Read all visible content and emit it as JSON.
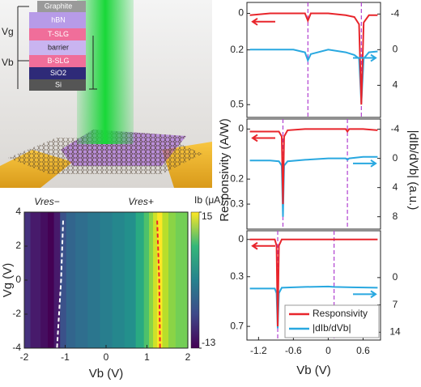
{
  "schematic": {
    "layers": [
      "Graphite",
      "hBN",
      "T-SLG",
      "barrier",
      "B-SLG",
      "SiO2",
      "Si"
    ],
    "voltages": [
      "Vg",
      "Vb"
    ]
  },
  "chart_data": [
    {
      "type": "heatmap",
      "x_label": "Vb (V)",
      "y_label": "Vg (V)",
      "xlim": [
        -2,
        2
      ],
      "xticks": [
        -2,
        -1,
        0,
        1,
        2
      ],
      "ylim": [
        -4,
        4
      ],
      "yticks": [
        -4,
        -2,
        0,
        2,
        4
      ],
      "x": [
        -2,
        -1.7,
        -1.5,
        -1.35,
        -1.2,
        -1.05,
        -0.9,
        -0.6,
        -0.3,
        0,
        0.3,
        0.6,
        0.85,
        1.0,
        1.1,
        1.2,
        1.3,
        1.45,
        1.6,
        1.8,
        2
      ],
      "values": [
        -9,
        -11,
        -12,
        -13,
        -11,
        -6,
        -4,
        -3,
        -2,
        -1,
        0,
        1,
        4,
        7,
        10,
        13,
        15,
        12,
        10,
        9,
        9
      ],
      "colorbar": {
        "label": "Ib (μA)",
        "lim": [
          -13,
          15
        ],
        "ticks": [
          15,
          -13
        ]
      },
      "lines": [
        {
          "name": "Vres−",
          "color": "#ffffff",
          "x": [
            -1.05,
            -1.1,
            -1.2
          ],
          "y": [
            3.5,
            0,
            -4
          ]
        },
        {
          "name": "Vres+",
          "color": "#e8252b",
          "x": [
            1.25,
            1.3,
            1.32
          ],
          "y": [
            3.5,
            0,
            -4
          ]
        }
      ]
    },
    {
      "type": "line",
      "x_label": "Vb (V)",
      "y_label": "Responsivity (A/W)",
      "y2_label": "|dIb/dVb| (a.u.)",
      "xlim": [
        -1.4,
        0.9
      ],
      "xticks": [
        -1.2,
        -0.6,
        0,
        0.6
      ],
      "series": [
        {
          "name": "Responsivity",
          "color": "#e8252b"
        },
        {
          "name": "|dIb/dVb|",
          "color": "#29a8e0",
          "axis": "y2"
        }
      ],
      "panels": [
        {
          "ylim": [
            -0.06,
            0.57
          ],
          "yticks": [
            0.0,
            0.2,
            0.5
          ],
          "y2lim": [
            -5.3,
            7.6
          ],
          "y2ticks": [
            -4,
            0,
            4
          ],
          "markers": [
            -0.35,
            0.57
          ],
          "x": [
            -1.35,
            -1.0,
            -0.6,
            -0.4,
            -0.35,
            -0.3,
            0,
            0.3,
            0.45,
            0.53,
            0.57,
            0.61,
            0.7,
            0.85
          ],
          "values": [
            [
              0.01,
              0.0,
              0.0,
              0.0,
              0.04,
              0.0,
              0.0,
              0.01,
              0.02,
              0.06,
              0.5,
              0.05,
              0.01,
              0.01
            ],
            [
              0,
              0,
              0,
              0.3,
              1.2,
              0.5,
              0,
              0.3,
              0.6,
              1,
              6,
              1,
              0.3,
              0.2
            ]
          ]
        },
        {
          "ylim": [
            -0.04,
            0.4
          ],
          "yticks": [
            0.0,
            0.2,
            0.3
          ],
          "y2lim": [
            -5.4,
            9.7
          ],
          "y2ticks": [
            -4,
            0,
            4,
            8
          ],
          "markers": [
            -0.78,
            0.33
          ],
          "x": [
            -1.35,
            -1.0,
            -0.85,
            -0.8,
            -0.78,
            -0.76,
            -0.7,
            -0.4,
            0,
            0.3,
            0.33,
            0.36,
            0.6,
            0.85
          ],
          "values": [
            [
              0.01,
              0.01,
              0.01,
              0.03,
              0.3,
              0.03,
              0.005,
              0.0,
              0.0,
              0.0,
              0.01,
              0.0,
              0.0,
              0.005
            ],
            [
              0.3,
              0.3,
              0.4,
              1,
              8,
              1,
              0.4,
              0.2,
              0,
              0,
              0.2,
              0,
              -0.2,
              -0.2
            ]
          ]
        },
        {
          "ylim": [
            -0.07,
            0.81
          ],
          "yticks": [
            0.0,
            0.3,
            0.7
          ],
          "y2lim": [
            -12,
            16
          ],
          "y2ticks": [
            0,
            7,
            14
          ],
          "markers": [
            -0.87,
            0.1
          ],
          "x": [
            -1.35,
            -1.0,
            -0.92,
            -0.89,
            -0.87,
            -0.85,
            -0.8,
            -0.4,
            0,
            0.1,
            0.4,
            0.85
          ],
          "values": [
            [
              0.0,
              0.0,
              0.0,
              0.05,
              0.7,
              0.05,
              0.0,
              0.0,
              0.0,
              0.0,
              0.0,
              0.0
            ],
            [
              2.8,
              2.8,
              2.8,
              4,
              13,
              4,
              2.6,
              2.4,
              2.3,
              2.4,
              2.5,
              2.6
            ]
          ]
        }
      ]
    }
  ]
}
